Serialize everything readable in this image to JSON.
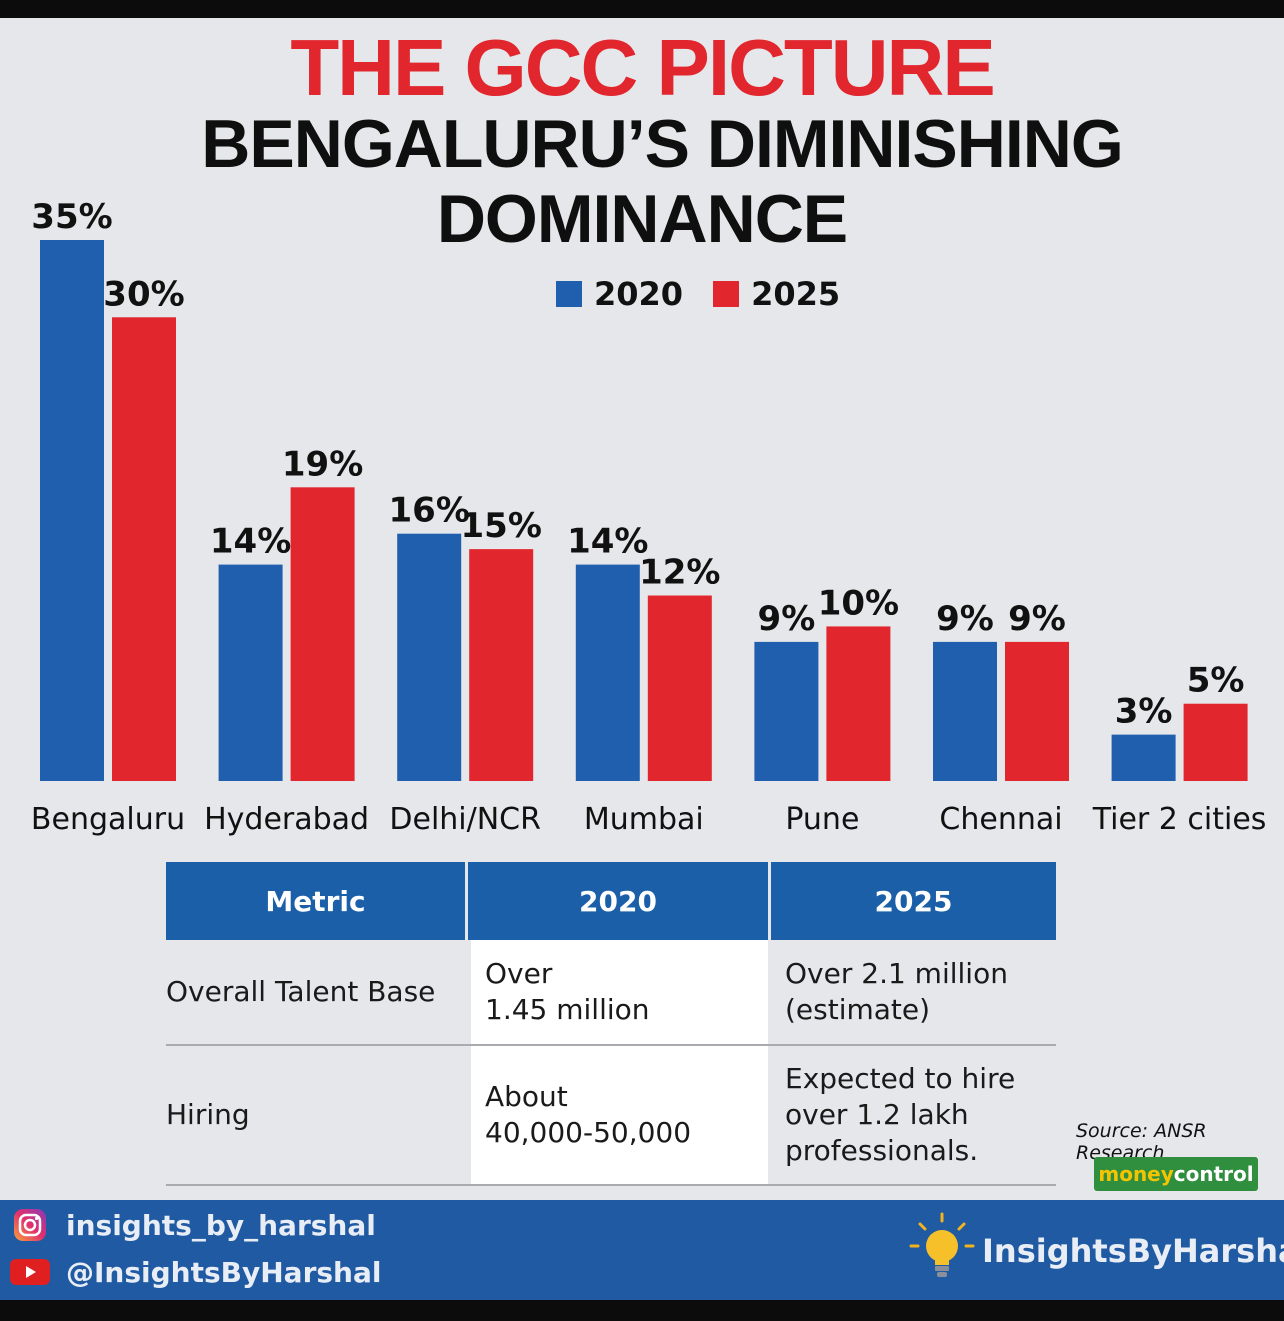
{
  "header": {
    "title": "THE GCC PICTURE",
    "subtitle_line1": "BENGALURU’S DIMINISHING",
    "subtitle_line2": "DOMINANCE"
  },
  "colors": {
    "series_2020": "#1f5fae",
    "series_2025": "#e1262e",
    "title": "#e1262e",
    "table_header": "#1b5fa8",
    "footer": "#1f5aa2"
  },
  "chart_data": {
    "type": "bar",
    "title": "THE GCC PICTURE",
    "subtitle": "BENGALURU’S DIMINISHING DOMINANCE",
    "categories": [
      "Bengaluru",
      "Hyderabad",
      "Delhi/NCR",
      "Mumbai",
      "Pune",
      "Chennai",
      "Tier 2 cities"
    ],
    "series": [
      {
        "name": "2020",
        "values": [
          35,
          14,
          16,
          14,
          9,
          9,
          3
        ],
        "labels": [
          "35%",
          "14%",
          "16%",
          "14%",
          "9%",
          "9%",
          "3%"
        ]
      },
      {
        "name": "2025",
        "values": [
          30,
          19,
          15,
          12,
          10,
          9,
          5
        ],
        "labels": [
          "30%",
          "19%",
          "15%",
          "12%",
          "10%",
          "9%",
          "5%"
        ]
      }
    ],
    "unit": "%",
    "ylim": [
      0,
      35
    ],
    "legend": "top-center",
    "grid": false
  },
  "table": {
    "headers": [
      "Metric",
      "2020",
      "2025"
    ],
    "rows": [
      {
        "metric": "Overall Talent Base",
        "v2020": "Over\n1.45 million",
        "v2025": "Over 2.1 million\n(estimate)"
      },
      {
        "metric": "Hiring",
        "v2020": "About\n40,000-50,000",
        "v2025": "Expected to hire\nover 1.2 lakh\nprofessionals."
      }
    ]
  },
  "source": "Source: ANSR Research",
  "logo": {
    "part1": "money",
    "part2": "control"
  },
  "footer": {
    "instagram": "insights_by_harshal",
    "youtube": "@InsightsByHarshal",
    "brand": "InsightsByHarshal",
    "icons": [
      "instagram-icon",
      "youtube-icon",
      "lightbulb-icon"
    ]
  }
}
